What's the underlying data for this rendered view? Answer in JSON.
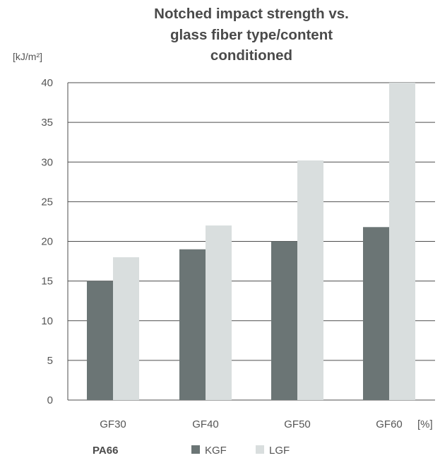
{
  "title_lines": [
    "Notched impact strength vs.",
    "glass fiber type/content",
    "conditioned"
  ],
  "colors": {
    "kgf": "#6b7575",
    "lgf": "#d9dede",
    "grid": "#4d4d4d",
    "text": "#555555"
  },
  "chart_data": {
    "type": "bar",
    "title": "Notched impact strength vs. glass fiber type/content conditioned",
    "ylabel": "[kJ/m²]",
    "xlabel": "[%]",
    "categories": [
      "GF30",
      "GF40",
      "GF50",
      "GF60"
    ],
    "series": [
      {
        "name": "KGF",
        "values": [
          15,
          19,
          20,
          21.8
        ]
      },
      {
        "name": "LGF",
        "values": [
          18,
          22,
          30.2,
          40
        ]
      }
    ],
    "ylim": [
      0,
      40
    ],
    "yticks": [
      0,
      5,
      10,
      15,
      20,
      25,
      30,
      35,
      40
    ],
    "grid": true,
    "legend_position": "bottom",
    "legend_label": "PA66"
  }
}
